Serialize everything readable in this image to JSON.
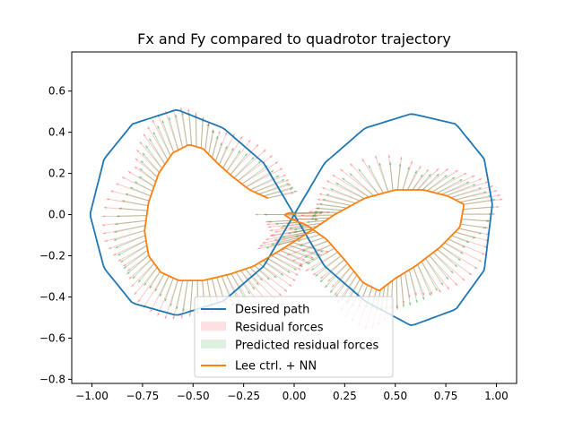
{
  "chart_data": {
    "type": "line",
    "title": "Fx and Fy compared to quadrotor trajectory",
    "xlabel": "",
    "ylabel": "",
    "xlim": [
      -1.1,
      1.1
    ],
    "ylim": [
      -0.82,
      0.79
    ],
    "xticks": [
      -1.0,
      -0.75,
      -0.5,
      -0.25,
      0.0,
      0.25,
      0.5,
      0.75,
      1.0
    ],
    "xtick_labels": [
      "−1.00",
      "−0.75",
      "−0.50",
      "−0.25",
      "0.00",
      "0.25",
      "0.50",
      "0.75",
      "1.00"
    ],
    "yticks": [
      -0.8,
      -0.6,
      -0.4,
      -0.2,
      0.0,
      0.2,
      0.4,
      0.6
    ],
    "ytick_labels": [
      "−0.8",
      "−0.6",
      "−0.4",
      "−0.2",
      "0.0",
      "0.2",
      "0.4",
      "0.6"
    ],
    "grid": false,
    "legend_placement": "lower-center",
    "colors": {
      "desired": "#1f77b4",
      "residual": "#ff0000",
      "predicted": "#008000",
      "actual": "#ff7f0e"
    },
    "series": [
      {
        "name": "Desired path",
        "kind": "line",
        "x": [
          0.98,
          0.94,
          0.8,
          0.58,
          0.35,
          0.15,
          0.0,
          -0.15,
          -0.35,
          -0.58,
          -0.8,
          -0.94,
          -1.01,
          -0.94,
          -0.8,
          -0.58,
          -0.35,
          -0.15,
          0.0,
          0.15,
          0.35,
          0.58,
          0.8,
          0.94,
          0.98
        ],
        "y": [
          0.05,
          0.27,
          0.44,
          0.49,
          0.42,
          0.25,
          0.0,
          -0.25,
          -0.42,
          -0.49,
          -0.43,
          -0.26,
          0.0,
          0.27,
          0.44,
          0.51,
          0.42,
          0.25,
          0.0,
          -0.25,
          -0.42,
          -0.54,
          -0.46,
          -0.27,
          0.05
        ]
      },
      {
        "name": "Lee ctrl. + NN",
        "kind": "line",
        "x": [
          -0.13,
          -0.22,
          -0.3,
          -0.38,
          -0.45,
          -0.52,
          -0.6,
          -0.67,
          -0.72,
          -0.74,
          -0.72,
          -0.66,
          -0.57,
          -0.45,
          -0.32,
          -0.2,
          -0.08,
          0.05,
          0.2,
          0.35,
          0.5,
          0.64,
          0.76,
          0.84,
          0.82,
          0.72,
          0.6,
          0.5,
          0.42,
          0.34,
          0.25,
          0.16,
          0.06,
          -0.02,
          -0.05,
          -0.02,
          0.01
        ],
        "y": [
          0.08,
          0.12,
          0.18,
          0.25,
          0.32,
          0.34,
          0.3,
          0.2,
          0.06,
          -0.08,
          -0.2,
          -0.28,
          -0.32,
          -0.32,
          -0.29,
          -0.25,
          -0.18,
          -0.1,
          0.0,
          0.08,
          0.12,
          0.12,
          0.09,
          0.05,
          -0.06,
          -0.16,
          -0.25,
          -0.31,
          -0.37,
          -0.33,
          -0.22,
          -0.12,
          -0.05,
          -0.02,
          0.0,
          0.01,
          0.0
        ]
      },
      {
        "name": "Residual forces",
        "kind": "arrows",
        "arrow_length": 0.22
      },
      {
        "name": "Predicted residual forces",
        "kind": "arrows",
        "arrow_length": 0.16
      }
    ]
  }
}
